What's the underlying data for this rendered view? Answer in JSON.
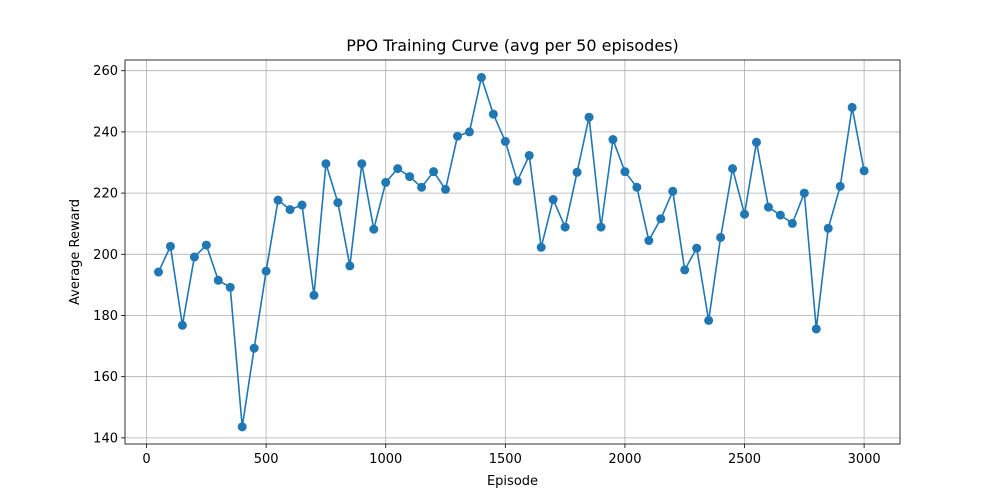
{
  "chart_data": {
    "type": "line",
    "title": "PPO Training Curve (avg per 50 episodes)",
    "xlabel": "Episode",
    "ylabel": "Average Reward",
    "xlim": [
      -90,
      3150
    ],
    "ylim": [
      138,
      263.5
    ],
    "xticks": [
      0,
      500,
      1000,
      1500,
      2000,
      2500,
      3000
    ],
    "yticks": [
      140,
      160,
      180,
      200,
      220,
      240,
      260
    ],
    "grid": true,
    "markers": true,
    "color": "#1f77b4",
    "series": [
      {
        "x": [
          50,
          100,
          150,
          200,
          250,
          300,
          350,
          400,
          450,
          500,
          550,
          600,
          650,
          700,
          750,
          800,
          850,
          900,
          950,
          1000,
          1050,
          1100,
          1150,
          1200,
          1250,
          1300,
          1350,
          1400,
          1450,
          1500,
          1550,
          1600,
          1650,
          1700,
          1750,
          1800,
          1850,
          1900,
          1950,
          2000,
          2050,
          2100,
          2150,
          2200,
          2250,
          2300,
          2350,
          2400,
          2450,
          2500,
          2550,
          2600,
          2650,
          2700,
          2750,
          2800,
          2850,
          2900,
          2950,
          3000
        ],
        "values": [
          194.2,
          202.6,
          176.8,
          199.1,
          203.0,
          191.5,
          189.2,
          143.6,
          169.3,
          194.5,
          217.7,
          214.6,
          216.1,
          186.6,
          229.6,
          216.9,
          196.2,
          229.6,
          208.2,
          223.5,
          228.0,
          225.4,
          221.9,
          227.0,
          221.2,
          238.6,
          240.0,
          257.8,
          245.8,
          236.9,
          223.9,
          232.3,
          202.3,
          217.9,
          208.9,
          226.8,
          244.8,
          208.9,
          237.5,
          227.0,
          221.9,
          204.5,
          211.6,
          220.6,
          194.9,
          202.0,
          178.4,
          205.5,
          228.0,
          213.1,
          236.6,
          215.4,
          212.8,
          210.1,
          220.0,
          175.6,
          208.5,
          222.2,
          248.0,
          227.3
        ]
      }
    ]
  }
}
